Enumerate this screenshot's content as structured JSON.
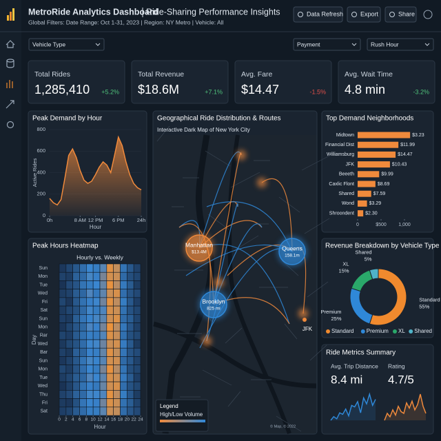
{
  "header": {
    "title": "MetroRide Analytics Dashboard",
    "subtitle": "Ride-Sharing Performance Insights",
    "filters": "Global Filters: Date Range: Oct 1-31, 2023 | Region: NY Metro | Vehicle: All",
    "buttons": [
      "Data Refresh",
      "Export",
      "Share"
    ]
  },
  "dropdowns": [
    "Vehicle Type",
    "Payment",
    "Rush Hour"
  ],
  "kpis": [
    {
      "label": "Total Rides",
      "value": "1,285,410",
      "change": "+5.2%",
      "color": "#4fc07a"
    },
    {
      "label": "Total Revenue",
      "value": "$18.6M",
      "change": "+7.1%",
      "color": "#4fc07a"
    },
    {
      "label": "Avg. Fare",
      "value": "$14.47",
      "change": "-1.5%",
      "color": "#e0504a"
    },
    {
      "label": "Avg. Wait Time",
      "value": "4.8 min",
      "change": "-3.2%",
      "color": "#4fc07a"
    }
  ],
  "map": {
    "title": "Geographical Ride Distribution & Routes",
    "subtitle": "Interactive Dark Map of New York City",
    "nodes": [
      {
        "label": "Manhattan",
        "detail": "$13.4M",
        "color": "#f08a3c"
      },
      {
        "label": "Queens",
        "detail": "158.1m",
        "color": "#2f88d8"
      },
      {
        "label": "Brooklyn",
        "detail": "825 mi",
        "color": "#2f88d8"
      },
      {
        "label": "JFK"
      }
    ],
    "legend_title": "Legend",
    "legend_label": "High/Low Volume",
    "credit": "© Map, © 2022"
  },
  "metrics": {
    "title": "Ride Metrics Summary",
    "items": [
      {
        "label": "Avg. Trip Distance",
        "value": "8.4 mi"
      },
      {
        "label": "Rating",
        "value": "4.7/5"
      }
    ]
  },
  "chart_data": [
    {
      "type": "area",
      "title": "Peak Demand by Hour",
      "y_label": "Active Rides",
      "x_label": "Hour",
      "color": "#f08a3c",
      "x": [
        0,
        1,
        2,
        3,
        4,
        5,
        6,
        7,
        8,
        9,
        10,
        11,
        12,
        13,
        14,
        15,
        16,
        17,
        18,
        19,
        20,
        21,
        22,
        23,
        24
      ],
      "values": [
        160,
        120,
        100,
        150,
        350,
        560,
        620,
        540,
        420,
        330,
        300,
        320,
        380,
        450,
        500,
        470,
        400,
        560,
        730,
        650,
        500,
        380,
        300,
        260,
        240
      ],
      "xlim": [
        0,
        24
      ],
      "ylim": [
        0,
        800
      ],
      "yticks": [
        0,
        200,
        400,
        600,
        800
      ],
      "xticks": [
        {
          "value": 0,
          "label": "0h"
        },
        {
          "value": 8,
          "label": "8 AM"
        },
        {
          "value": 12,
          "label": "12 PM"
        },
        {
          "value": 18,
          "label": "6 PM"
        },
        {
          "value": 24,
          "label": "24h"
        }
      ]
    },
    {
      "type": "hbar",
      "title": "Top Demand Neighborhoods",
      "color": "#f08a3c",
      "categories": [
        "Midtown",
        "Financial Dist",
        "Williamsburg",
        "JFK",
        "Beeeth",
        "Caxlic Flont",
        "Shared",
        "Wond",
        "Shroondent"
      ],
      "values": [
        1120,
        870,
        810,
        690,
        460,
        380,
        290,
        200,
        120
      ],
      "bar_labels": [
        "$3.23",
        "$11.99",
        "$14.47",
        "$10.43",
        "$9.99",
        "$8.69",
        "$7.59",
        "$3.29",
        "$2.30"
      ],
      "xlim": [
        0,
        1200
      ],
      "xticks": [
        0,
        {
          "value": 500,
          "label": "$500"
        },
        {
          "value": 1000,
          "label": "1,000"
        }
      ]
    },
    {
      "type": "heatmap",
      "title": "Peak Hours Heatmap",
      "subtitle": "Hourly vs. Weekly",
      "x_label": "Hour",
      "y_label": "Day",
      "rows": [
        "Sun",
        "Mon",
        "Tue",
        "Wed",
        "Fri",
        "Sat",
        "Sun",
        "Mon",
        "Rar",
        "Wed",
        "Bar",
        "Sun",
        "Mon",
        "Tue",
        "Wed",
        "Thu",
        "Fri",
        "Sat"
      ],
      "x": [
        0,
        2,
        4,
        6,
        8,
        10,
        12,
        14,
        16,
        18,
        20,
        22
      ],
      "xlim": [
        0,
        24
      ],
      "xticks": [
        0,
        2,
        4,
        6,
        8,
        10,
        12,
        14,
        16,
        18,
        20,
        22,
        24
      ],
      "values": [
        [
          0.12,
          0.2,
          0.3,
          0.42,
          0.55,
          0.5,
          0.62,
          0.95,
          0.88,
          0.45,
          0.3,
          0.18
        ],
        [
          0.18,
          0.15,
          0.35,
          0.4,
          0.58,
          0.52,
          0.7,
          0.92,
          0.9,
          0.4,
          0.25,
          0.2
        ],
        [
          0.1,
          0.22,
          0.28,
          0.45,
          0.5,
          0.55,
          0.66,
          0.97,
          0.85,
          0.48,
          0.32,
          0.15
        ],
        [
          0.15,
          0.18,
          0.32,
          0.38,
          0.6,
          0.48,
          0.64,
          0.9,
          0.93,
          0.42,
          0.28,
          0.22
        ],
        [
          0.2,
          0.12,
          0.3,
          0.44,
          0.52,
          0.56,
          0.68,
          0.96,
          0.87,
          0.5,
          0.3,
          0.16
        ],
        [
          0.14,
          0.2,
          0.26,
          0.4,
          0.57,
          0.5,
          0.6,
          0.93,
          0.9,
          0.44,
          0.27,
          0.2
        ],
        [
          0.16,
          0.14,
          0.33,
          0.46,
          0.54,
          0.58,
          0.63,
          0.91,
          0.94,
          0.41,
          0.33,
          0.19
        ],
        [
          0.11,
          0.19,
          0.29,
          0.39,
          0.59,
          0.53,
          0.69,
          0.98,
          0.86,
          0.47,
          0.29,
          0.17
        ],
        [
          0.19,
          0.16,
          0.31,
          0.43,
          0.51,
          0.49,
          0.61,
          0.94,
          0.89,
          0.43,
          0.26,
          0.21
        ],
        [
          0.13,
          0.21,
          0.27,
          0.41,
          0.56,
          0.57,
          0.67,
          0.9,
          0.92,
          0.49,
          0.31,
          0.14
        ],
        [
          0.17,
          0.13,
          0.34,
          0.37,
          0.53,
          0.51,
          0.65,
          0.95,
          0.88,
          0.46,
          0.28,
          0.23
        ],
        [
          0.12,
          0.18,
          0.3,
          0.45,
          0.58,
          0.54,
          0.62,
          0.92,
          0.91,
          0.4,
          0.3,
          0.18
        ],
        [
          0.2,
          0.15,
          0.28,
          0.42,
          0.55,
          0.5,
          0.7,
          0.97,
          0.85,
          0.45,
          0.25,
          0.2
        ],
        [
          0.15,
          0.2,
          0.32,
          0.38,
          0.6,
          0.55,
          0.64,
          0.93,
          0.9,
          0.48,
          0.32,
          0.16
        ],
        [
          0.1,
          0.17,
          0.29,
          0.44,
          0.52,
          0.48,
          0.66,
          0.91,
          0.93,
          0.42,
          0.27,
          0.21
        ],
        [
          0.18,
          0.22,
          0.35,
          0.4,
          0.57,
          0.56,
          0.6,
          0.96,
          0.87,
          0.5,
          0.3,
          0.15
        ],
        [
          0.14,
          0.12,
          0.26,
          0.46,
          0.54,
          0.52,
          0.68,
          0.94,
          0.9,
          0.44,
          0.33,
          0.19
        ],
        [
          0.16,
          0.19,
          0.31,
          0.41,
          0.5,
          0.5,
          0.63,
          0.9,
          0.88,
          0.41,
          0.29,
          0.22
        ]
      ]
    },
    {
      "type": "donut",
      "title": "Revenue Breakdown by Vehicle Type",
      "categories": [
        "Standard",
        "Premium",
        "XL",
        "Shared"
      ],
      "values": [
        55,
        25,
        15,
        5
      ],
      "value_labels": [
        "55%",
        "25%",
        "15%",
        "5%"
      ],
      "colors": [
        "#f08a2e",
        "#2f88d8",
        "#2aa86a",
        "#4fb3c8"
      ]
    },
    {
      "type": "line",
      "color": "#2f88d8",
      "values": [
        20,
        25,
        22,
        30,
        28,
        35,
        26,
        40,
        38,
        45,
        30,
        50,
        42,
        55,
        40,
        48
      ]
    },
    {
      "type": "line",
      "color": "#f08a3c",
      "values": [
        22,
        30,
        26,
        34,
        28,
        38,
        32,
        30,
        42,
        36,
        44,
        34,
        40,
        52,
        38,
        30
      ]
    }
  ]
}
